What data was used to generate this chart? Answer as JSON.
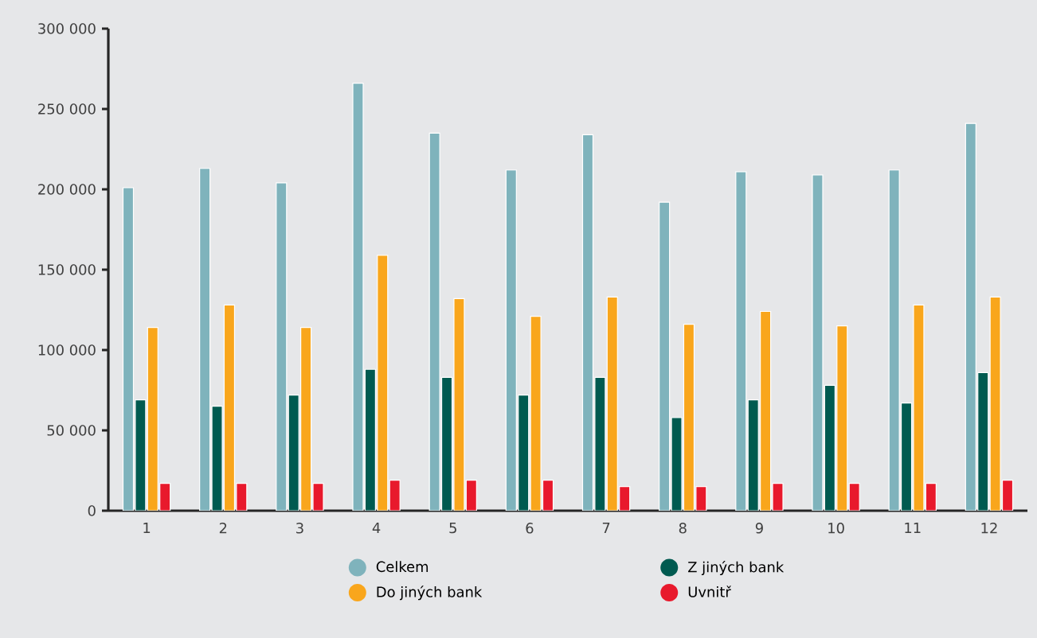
{
  "chart_data": {
    "type": "bar",
    "categories": [
      "1",
      "2",
      "3",
      "4",
      "5",
      "6",
      "7",
      "8",
      "9",
      "10",
      "11",
      "12"
    ],
    "series": [
      {
        "name": "Celkem",
        "color": "#7fb3bc",
        "values": [
          201000,
          213000,
          204000,
          266000,
          235000,
          212000,
          234000,
          192000,
          211000,
          209000,
          212000,
          241000
        ]
      },
      {
        "name": "Z jiných bank",
        "color": "#005a50",
        "values": [
          69000,
          65000,
          72000,
          88000,
          83000,
          72000,
          83000,
          58000,
          69000,
          78000,
          67000,
          86000
        ]
      },
      {
        "name": "Do jiných bank",
        "color": "#f9a61c",
        "values": [
          114000,
          128000,
          114000,
          159000,
          132000,
          121000,
          133000,
          116000,
          124000,
          115000,
          128000,
          133000
        ]
      },
      {
        "name": "Uvnitř",
        "color": "#e8192c",
        "values": [
          17000,
          17000,
          17000,
          19000,
          19000,
          19000,
          15000,
          15000,
          17000,
          17000,
          17000,
          19000
        ]
      }
    ],
    "ylim": [
      0,
      300000
    ],
    "yticks": [
      {
        "value": 0,
        "label": "0"
      },
      {
        "value": 50000,
        "label": "50 000"
      },
      {
        "value": 100000,
        "label": "100 000"
      },
      {
        "value": 150000,
        "label": "150 000"
      },
      {
        "value": 200000,
        "label": "200 000"
      },
      {
        "value": 250000,
        "label": "250 000"
      },
      {
        "value": 300000,
        "label": "300 000"
      }
    ],
    "legend": "bottom"
  }
}
